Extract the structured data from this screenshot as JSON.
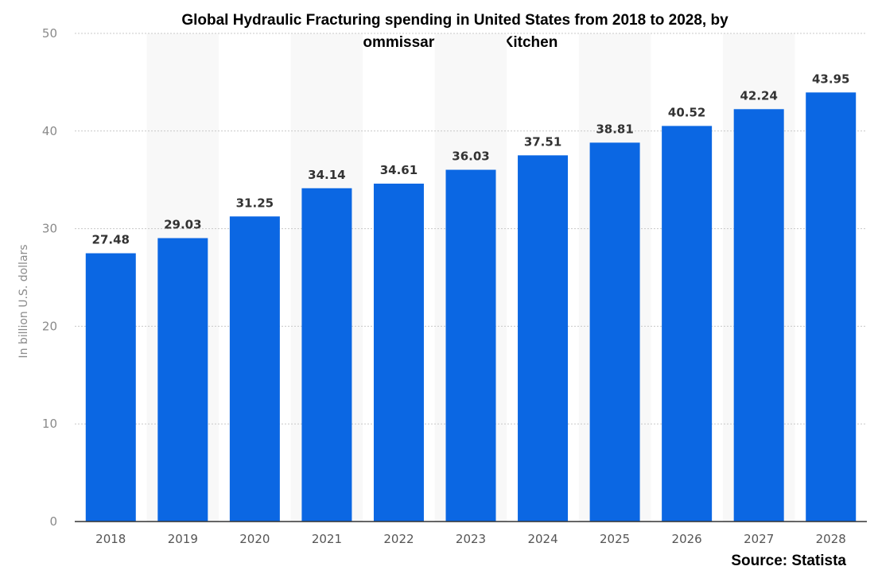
{
  "chart_data": {
    "type": "bar",
    "title_line1": "Global Hydraulic Fracturing spending in United States from 2018 to 2028, by",
    "title_line2": "Commissary/Shared Kitchen",
    "ylabel": "In billion U.S. dollars",
    "xlabel": "",
    "categories": [
      "2018",
      "2019",
      "2020",
      "2021",
      "2022",
      "2023",
      "2024",
      "2025",
      "2026",
      "2027",
      "2028"
    ],
    "values": [
      27.48,
      29.03,
      31.25,
      34.14,
      34.61,
      36.03,
      37.51,
      38.81,
      40.52,
      42.24,
      43.95
    ],
    "ylim": [
      0,
      50
    ],
    "yticks": [
      0,
      10,
      20,
      30,
      40,
      50
    ],
    "grid": true,
    "bar_color": "#0b67e3",
    "band_color": "#f8f8f8",
    "source": "Source: Statista"
  }
}
